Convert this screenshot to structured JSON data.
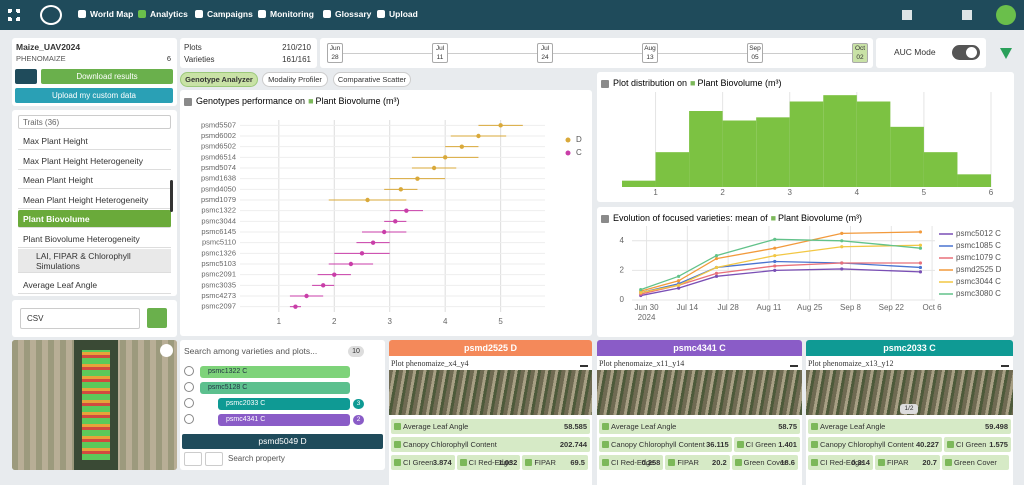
{
  "nav": {
    "items": [
      "World Map",
      "Analytics",
      "Campaigns",
      "Monitoring",
      "Glossary",
      "Upload"
    ]
  },
  "project": {
    "name": "Maize_UAV2024",
    "org": "PHENOMAIZE",
    "count": "6",
    "download": "Download results",
    "upload": "Upload my custom data"
  },
  "traits": {
    "search": "Traits (36)",
    "items": [
      "Max Plant Height",
      "Max Plant Height Heterogeneity",
      "Mean Plant Height",
      "Mean Plant Height Heterogeneity",
      "Plant Biovolume",
      "Plant Biovolume Heterogeneity"
    ],
    "group": "LAI, FIPAR & Chlorophyll Simulations",
    "group_items": [
      "Average Leaf Angle",
      "Canopy Chlorophyll Content"
    ]
  },
  "export": {
    "format": "CSV"
  },
  "stats": {
    "plots_label": "Plots",
    "plots": "210/210",
    "varieties_label": "Varieties",
    "varieties": "161/161"
  },
  "timeline": [
    {
      "month": "Jun",
      "day": "28"
    },
    {
      "month": "Jul",
      "day": "11"
    },
    {
      "month": "Jul",
      "day": "24"
    },
    {
      "month": "Aug",
      "day": "13"
    },
    {
      "month": "Sep",
      "day": "05"
    },
    {
      "month": "Oct",
      "day": "02"
    }
  ],
  "auc": "AUC Mode",
  "tabs": [
    "Genotype Analyzer",
    "Modality Profiler",
    "Comparative Scatter"
  ],
  "chart_data": [
    {
      "type": "errorbar",
      "title": "Genotypes performance on",
      "trait": "Plant Biovolume (m³)",
      "categories": [
        "psmd5507",
        "psmd6002",
        "psmd6502",
        "psmd6514",
        "psmd5074",
        "psmd1638",
        "psmd4050",
        "psmd1079",
        "psmc1322",
        "psmc3044",
        "psmc6145",
        "psmc5110",
        "psmc1326",
        "psmc5103",
        "psmc2091",
        "psmc3035",
        "psmc4273",
        "psmc2097"
      ],
      "series": [
        {
          "name": "D",
          "color": "#d9a93a",
          "values": [
            5.0,
            4.6,
            4.3,
            4.0,
            3.8,
            3.5,
            3.2,
            2.6,
            null,
            null,
            null,
            null,
            null,
            null,
            null,
            null,
            null,
            null
          ],
          "errors": [
            0.4,
            0.5,
            0.3,
            0.6,
            0.4,
            0.5,
            0.3,
            0.7,
            null,
            null,
            null,
            null,
            null,
            null,
            null,
            null,
            null,
            null
          ]
        },
        {
          "name": "C",
          "color": "#c93ea8",
          "values": [
            null,
            null,
            null,
            null,
            null,
            null,
            null,
            null,
            3.3,
            3.1,
            2.9,
            2.7,
            2.5,
            2.3,
            2.0,
            1.8,
            1.5,
            1.3
          ],
          "errors": [
            null,
            null,
            null,
            null,
            null,
            null,
            null,
            null,
            0.3,
            0.2,
            0.4,
            0.3,
            0.5,
            0.4,
            0.3,
            0.2,
            0.3,
            0.1
          ]
        }
      ],
      "xlim": [
        0.3,
        5.8
      ],
      "xticks": [
        1,
        2,
        3,
        4,
        5
      ],
      "grid": true
    },
    {
      "type": "histogram",
      "title": "Plot distribution on",
      "trait": "Plant Biovolume (m³)",
      "color": "#7cc242",
      "bins": [
        0.5,
        1,
        1.5,
        2,
        2.5,
        3,
        3.5,
        4,
        4.5,
        5,
        5.5,
        6
      ],
      "values": [
        2,
        11,
        24,
        21,
        22,
        27,
        29,
        27,
        19,
        11,
        4
      ],
      "xlim": [
        0.5,
        6
      ],
      "xticks": [
        1,
        2,
        3,
        4,
        5,
        6
      ],
      "ylim": [
        0,
        30
      ],
      "grid": true
    },
    {
      "type": "line",
      "title": "Evolution of focused varieties: mean of",
      "trait": "Plant Biovolume (m³)",
      "x": [
        "2024-06-28",
        "2024-07-11",
        "2024-07-24",
        "2024-08-13",
        "2024-09-05",
        "2024-10-02"
      ],
      "series": [
        {
          "name": "psmc5012 C",
          "color": "#7a4fb5",
          "values": [
            0.3,
            0.8,
            1.6,
            2.0,
            2.1,
            1.9
          ]
        },
        {
          "name": "psmc1085 C",
          "color": "#4a74d0",
          "values": [
            0.5,
            1.1,
            2.2,
            2.6,
            2.5,
            2.2
          ]
        },
        {
          "name": "psmc1079 C",
          "color": "#e8707a",
          "values": [
            0.4,
            1.0,
            1.8,
            2.3,
            2.5,
            2.5
          ]
        },
        {
          "name": "psmd2525 D",
          "color": "#f29a3c",
          "values": [
            0.6,
            1.3,
            2.8,
            3.5,
            4.5,
            4.6
          ]
        },
        {
          "name": "psmc3044 C",
          "color": "#f2c744",
          "values": [
            0.5,
            1.0,
            2.2,
            3.0,
            3.6,
            3.7
          ]
        },
        {
          "name": "psmc3080 C",
          "color": "#62c28a",
          "values": [
            0.7,
            1.6,
            3.0,
            4.1,
            4.0,
            3.5
          ]
        }
      ],
      "xlim": [
        "2024-06-25",
        "2024-10-07"
      ],
      "xticks": [
        {
          "value": "2024-06-30",
          "label": "Jun 30"
        },
        {
          "value": "2024-07-14",
          "label": "Jul 14"
        },
        {
          "value": "2024-07-28",
          "label": "Jul 28"
        },
        {
          "value": "2024-08-11",
          "label": "Aug 11"
        },
        {
          "value": "2024-08-25",
          "label": "Aug 25"
        },
        {
          "value": "2024-09-08",
          "label": "Sep 8"
        },
        {
          "value": "2024-09-22",
          "label": "Sep 22"
        },
        {
          "value": "2024-10-06",
          "label": "Oct 6"
        }
      ],
      "x_year": "2024",
      "ylim": [
        0,
        5
      ],
      "yticks": [
        0,
        2,
        4
      ],
      "grid": true
    }
  ],
  "varieties": {
    "search": "Search among varieties and plots...",
    "count": "10",
    "items": [
      {
        "name": "psmc1322 C",
        "color": "#7ed37a"
      },
      {
        "name": "psmc5128 C",
        "color": "#5cc08e"
      },
      {
        "name": "psmc2033 C",
        "color": "#0f9a94",
        "badge": "3"
      },
      {
        "name": "psmc4341 C",
        "color": "#8a5cc7",
        "badge": "2"
      }
    ],
    "add": "psmd5049 D",
    "property": "Search property"
  },
  "cards": [
    {
      "title": "psmd2525 D",
      "color": "#f4895a",
      "plot": "Plot phenomaize_x4_y4",
      "rows": [
        [
          {
            "name": "Average Leaf Angle",
            "value": "58.585"
          }
        ],
        [
          {
            "name": "Canopy Chlorophyll Content",
            "value": "202.744"
          }
        ],
        [
          {
            "name": "CI Green",
            "value": "3.874"
          },
          {
            "name": "CI Red-Edge",
            "value": "1.032"
          },
          {
            "name": "FIPAR",
            "value": "69.5"
          }
        ]
      ]
    },
    {
      "title": "psmc4341 C",
      "color": "#8a5cc7",
      "plot": "Plot phenomaize_x11_y14",
      "rows": [
        [
          {
            "name": "Average Leaf Angle",
            "value": "58.75"
          }
        ],
        [
          {
            "name": "Canopy Chlorophyll Content",
            "value": "36.115"
          },
          {
            "name": "CI Green",
            "value": "1.401"
          }
        ],
        [
          {
            "name": "CI Red-Edge",
            "value": "0.258"
          },
          {
            "name": "FIPAR",
            "value": "20.2"
          },
          {
            "name": "Green Cover",
            "value": "18.6"
          }
        ]
      ]
    },
    {
      "title": "psmc2033 C",
      "color": "#0f9a94",
      "plot": "Plot phenomaize_x13_y12",
      "pager": "1/2",
      "rows": [
        [
          {
            "name": "Average Leaf Angle",
            "value": "59.498"
          }
        ],
        [
          {
            "name": "Canopy Chlorophyll Content",
            "value": "40.227"
          },
          {
            "name": "CI Green",
            "value": "1.575"
          }
        ],
        [
          {
            "name": "CI Red-Edge",
            "value": "0.314"
          },
          {
            "name": "FIPAR",
            "value": "20.7"
          },
          {
            "name": "Green Cover"
          }
        ]
      ]
    }
  ]
}
